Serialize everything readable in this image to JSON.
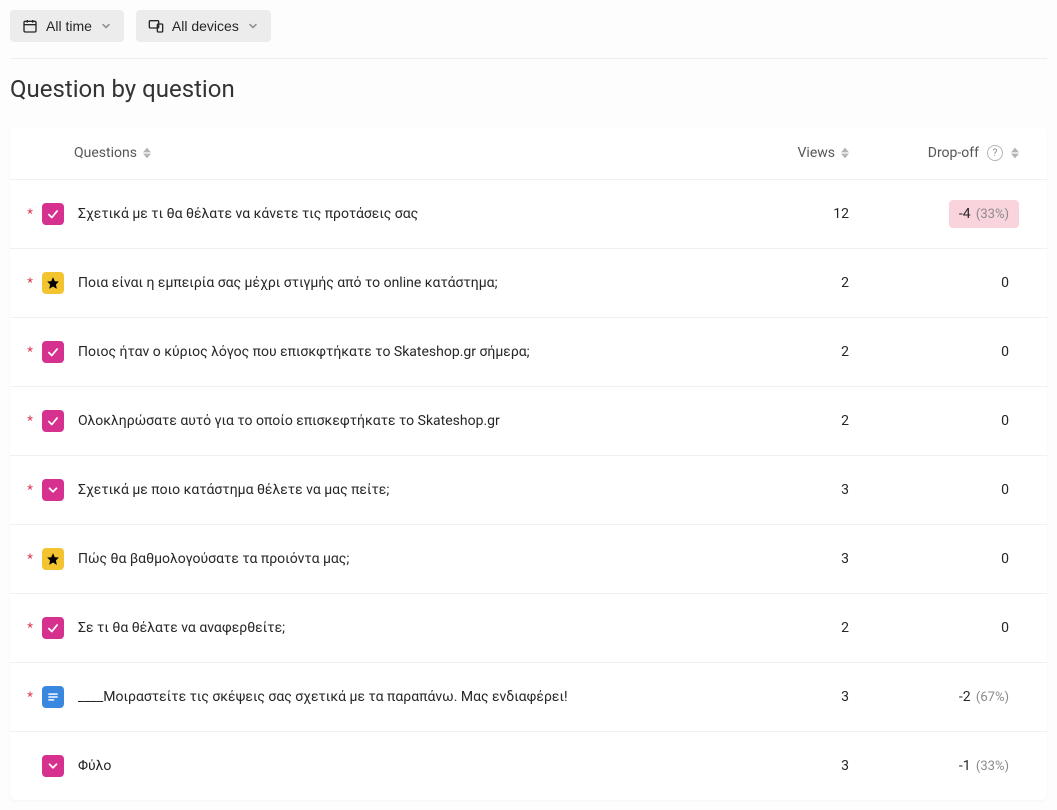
{
  "filters": {
    "time_label": "All time",
    "devices_label": "All devices"
  },
  "title": "Question by question",
  "table": {
    "headers": {
      "questions": "Questions",
      "views": "Views",
      "dropoff": "Drop-off"
    },
    "rows": [
      {
        "required": true,
        "icon": "check",
        "text": "Σχετικά με τι θα θέλατε να κάνετε τις προτάσεις σας",
        "views": "12",
        "dropoff_num": "-4",
        "dropoff_pct": "(33%)",
        "highlight": true
      },
      {
        "required": true,
        "icon": "star",
        "text": "Ποια είναι η εμπειρία σας μέχρι στιγμής από το online κατάστημα;",
        "views": "2",
        "dropoff_num": "0",
        "dropoff_pct": "",
        "highlight": false
      },
      {
        "required": true,
        "icon": "check",
        "text": "Ποιος ήταν ο κύριος λόγος που επισκφτήκατε το Skateshop.gr σήμερα;",
        "views": "2",
        "dropoff_num": "0",
        "dropoff_pct": "",
        "highlight": false
      },
      {
        "required": true,
        "icon": "check",
        "text": "Ολοκληρώσατε αυτό για το οποίο επισκεφτήκατε το Skateshop.gr",
        "views": "2",
        "dropoff_num": "0",
        "dropoff_pct": "",
        "highlight": false
      },
      {
        "required": true,
        "icon": "chev",
        "text": "Σχετικά με ποιο κατάστημα θέλετε να μας πείτε;",
        "views": "3",
        "dropoff_num": "0",
        "dropoff_pct": "",
        "highlight": false
      },
      {
        "required": true,
        "icon": "star",
        "text": "Πώς θα βαθμολογούσατε τα προιόντα μας;",
        "views": "3",
        "dropoff_num": "0",
        "dropoff_pct": "",
        "highlight": false
      },
      {
        "required": true,
        "icon": "check",
        "text": "Σε τι θα θέλατε να αναφερθείτε;",
        "views": "2",
        "dropoff_num": "0",
        "dropoff_pct": "",
        "highlight": false
      },
      {
        "required": true,
        "icon": "text",
        "text": "____Μοιραστείτε τις σκέψεις σας σχετικά με τα παραπάνω. Μας ενδιαφέρει!",
        "views": "3",
        "dropoff_num": "-2",
        "dropoff_pct": "(67%)",
        "highlight": false
      },
      {
        "required": false,
        "icon": "chev",
        "text": "Φύλο",
        "views": "3",
        "dropoff_num": "-1",
        "dropoff_pct": "(33%)",
        "highlight": false
      }
    ]
  },
  "colors": {
    "icon_pink": "#d6318f",
    "icon_yellow": "#f4c430",
    "icon_blue": "#3a87e0",
    "bad_pill_bg": "#f9d4dc",
    "required_red": "#d9304c"
  }
}
